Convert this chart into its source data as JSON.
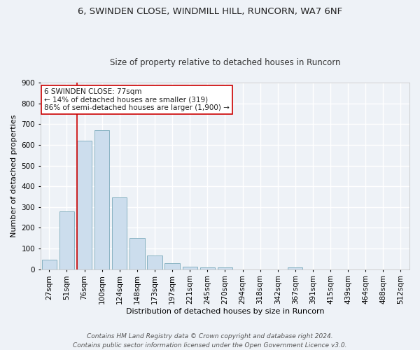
{
  "title_line1": "6, SWINDEN CLOSE, WINDMILL HILL, RUNCORN, WA7 6NF",
  "title_line2": "Size of property relative to detached houses in Runcorn",
  "xlabel": "Distribution of detached houses by size in Runcorn",
  "ylabel": "Number of detached properties",
  "categories": [
    "27sqm",
    "51sqm",
    "76sqm",
    "100sqm",
    "124sqm",
    "148sqm",
    "173sqm",
    "197sqm",
    "221sqm",
    "245sqm",
    "270sqm",
    "294sqm",
    "318sqm",
    "342sqm",
    "367sqm",
    "391sqm",
    "415sqm",
    "439sqm",
    "464sqm",
    "488sqm",
    "512sqm"
  ],
  "values": [
    45,
    280,
    620,
    670,
    345,
    150,
    65,
    30,
    14,
    10,
    10,
    0,
    0,
    0,
    10,
    0,
    0,
    0,
    0,
    0,
    0
  ],
  "bar_color": "#ccdded",
  "bar_edge_color": "#7aaabb",
  "property_line_color": "#cc0000",
  "property_line_index": 2,
  "annotation_text": "6 SWINDEN CLOSE: 77sqm\n← 14% of detached houses are smaller (319)\n86% of semi-detached houses are larger (1,900) →",
  "annotation_box_facecolor": "#ffffff",
  "annotation_box_edgecolor": "#cc0000",
  "ylim": [
    0,
    900
  ],
  "yticks": [
    0,
    100,
    200,
    300,
    400,
    500,
    600,
    700,
    800,
    900
  ],
  "footer_text": "Contains HM Land Registry data © Crown copyright and database right 2024.\nContains public sector information licensed under the Open Government Licence v3.0.",
  "background_color": "#eef2f7",
  "grid_color": "#ffffff",
  "title_fontsize": 9.5,
  "subtitle_fontsize": 8.5,
  "axis_label_fontsize": 8,
  "tick_fontsize": 7.5,
  "annotation_fontsize": 7.5,
  "footer_fontsize": 6.5
}
